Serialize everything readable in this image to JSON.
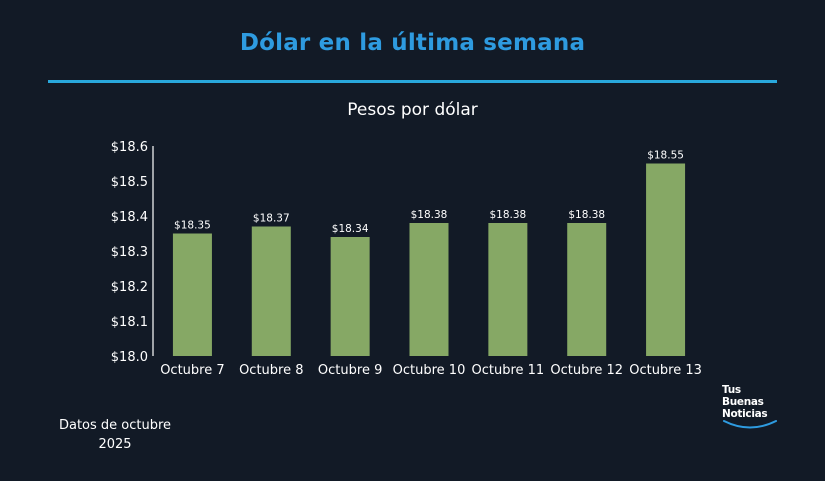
{
  "header": {
    "title": "Dólar en la última semana",
    "subtitle": "Pesos por dólar"
  },
  "footnote": {
    "line1": "Datos de octubre",
    "line2": "2025"
  },
  "logo": {
    "line1": "Tus",
    "line2": "Buenas",
    "line3": "Noticias"
  },
  "colors": {
    "background": "#121a26",
    "title": "#2e9be0",
    "rule": "#29a8dc",
    "bar": "#86a865",
    "text": "#ffffff"
  },
  "chart_data": {
    "type": "bar",
    "title": "Pesos por dólar",
    "xlabel": "",
    "ylabel": "",
    "categories": [
      "Octubre 7",
      "Octubre 8",
      "Octubre 9",
      "Octubre 10",
      "Octubre 11",
      "Octubre 12",
      "Octubre 13"
    ],
    "values": [
      18.35,
      18.37,
      18.34,
      18.38,
      18.38,
      18.38,
      18.55
    ],
    "value_labels": [
      "$18.35",
      "$18.37",
      "$18.34",
      "$18.38",
      "$18.38",
      "$18.38",
      "$18.55"
    ],
    "ylim": [
      18.0,
      18.6
    ],
    "yticks": [
      18.0,
      18.1,
      18.2,
      18.3,
      18.4,
      18.5,
      18.6
    ],
    "ytick_labels": [
      "$18.0",
      "$18.1",
      "$18.2",
      "$18.3",
      "$18.4",
      "$18.5",
      "$18.6"
    ],
    "grid": false,
    "legend": "none"
  }
}
